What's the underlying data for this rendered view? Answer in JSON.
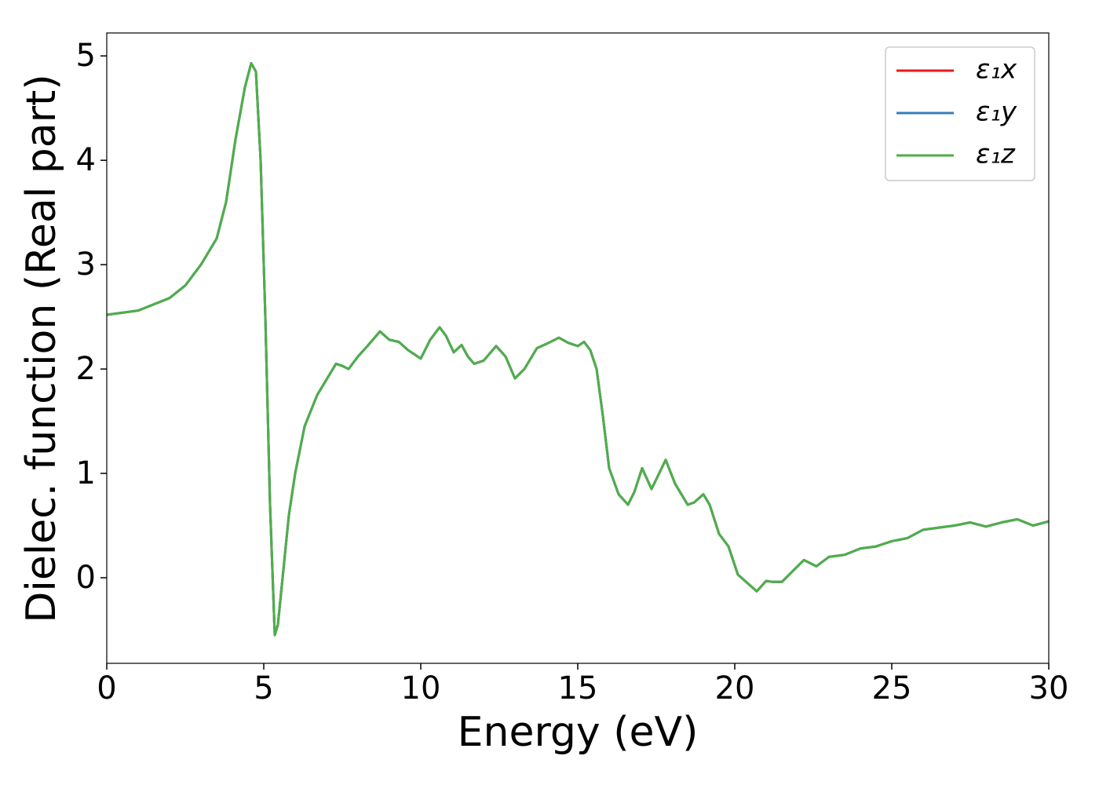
{
  "chart_data": {
    "type": "line",
    "xlabel": "Energy (eV)",
    "ylabel": "Dielec. function (Real part)",
    "x": [
      0,
      1,
      2,
      2.5,
      3,
      3.5,
      3.8,
      4.1,
      4.4,
      4.6,
      4.75,
      4.9,
      5.05,
      5.2,
      5.35,
      5.45,
      5.6,
      5.8,
      6.0,
      6.3,
      6.7,
      7.0,
      7.3,
      7.5,
      7.7,
      8.0,
      8.3,
      8.7,
      9.0,
      9.3,
      9.6,
      10.0,
      10.3,
      10.6,
      10.8,
      11.05,
      11.3,
      11.5,
      11.7,
      12.0,
      12.4,
      12.7,
      13.0,
      13.3,
      13.7,
      14.0,
      14.4,
      14.7,
      15.0,
      15.2,
      15.4,
      15.6,
      15.8,
      16.0,
      16.3,
      16.6,
      16.8,
      17.05,
      17.35,
      17.8,
      18.1,
      18.5,
      18.7,
      19.0,
      19.2,
      19.5,
      19.8,
      20.1,
      20.4,
      20.7,
      21.0,
      21.2,
      21.5,
      21.8,
      22.2,
      22.6,
      23.0,
      23.5,
      24.0,
      24.5,
      25.0,
      25.5,
      26.0,
      26.5,
      27.0,
      27.5,
      28.0,
      28.5,
      29.0,
      29.5,
      30.0
    ],
    "series": [
      {
        "name": "ε₁x",
        "color": "#e41a1c",
        "values": [
          2.52,
          2.56,
          2.68,
          2.8,
          3.0,
          3.25,
          3.6,
          4.2,
          4.7,
          4.93,
          4.85,
          4.0,
          2.5,
          0.7,
          -0.55,
          -0.45,
          0.0,
          0.6,
          1.0,
          1.45,
          1.75,
          1.9,
          2.05,
          2.03,
          2.0,
          2.12,
          2.22,
          2.36,
          2.28,
          2.26,
          2.18,
          2.1,
          2.28,
          2.4,
          2.32,
          2.16,
          2.23,
          2.12,
          2.05,
          2.08,
          2.22,
          2.12,
          1.91,
          2.0,
          2.2,
          2.24,
          2.3,
          2.25,
          2.22,
          2.26,
          2.18,
          2.0,
          1.55,
          1.05,
          0.8,
          0.7,
          0.82,
          1.05,
          0.85,
          1.13,
          0.9,
          0.7,
          0.72,
          0.8,
          0.7,
          0.42,
          0.3,
          0.03,
          -0.05,
          -0.13,
          -0.03,
          -0.04,
          -0.04,
          0.05,
          0.17,
          0.11,
          0.2,
          0.22,
          0.28,
          0.3,
          0.35,
          0.38,
          0.46,
          0.48,
          0.5,
          0.53,
          0.49,
          0.53,
          0.56,
          0.5,
          0.54
        ]
      },
      {
        "name": "ε₁y",
        "color": "#377eb8",
        "values": [
          2.52,
          2.56,
          2.68,
          2.8,
          3.0,
          3.25,
          3.6,
          4.2,
          4.7,
          4.93,
          4.85,
          4.0,
          2.5,
          0.7,
          -0.55,
          -0.45,
          0.0,
          0.6,
          1.0,
          1.45,
          1.75,
          1.9,
          2.05,
          2.03,
          2.0,
          2.12,
          2.22,
          2.36,
          2.28,
          2.26,
          2.18,
          2.1,
          2.28,
          2.4,
          2.32,
          2.16,
          2.23,
          2.12,
          2.05,
          2.08,
          2.22,
          2.12,
          1.91,
          2.0,
          2.2,
          2.24,
          2.3,
          2.25,
          2.22,
          2.26,
          2.18,
          2.0,
          1.55,
          1.05,
          0.8,
          0.7,
          0.82,
          1.05,
          0.85,
          1.13,
          0.9,
          0.7,
          0.72,
          0.8,
          0.7,
          0.42,
          0.3,
          0.03,
          -0.05,
          -0.13,
          -0.03,
          -0.04,
          -0.04,
          0.05,
          0.17,
          0.11,
          0.2,
          0.22,
          0.28,
          0.3,
          0.35,
          0.38,
          0.46,
          0.48,
          0.5,
          0.53,
          0.49,
          0.53,
          0.56,
          0.5,
          0.54
        ]
      },
      {
        "name": "ε₁z",
        "color": "#4daf4a",
        "values": [
          2.52,
          2.56,
          2.68,
          2.8,
          3.0,
          3.25,
          3.6,
          4.2,
          4.7,
          4.93,
          4.85,
          4.0,
          2.5,
          0.7,
          -0.55,
          -0.45,
          0.0,
          0.6,
          1.0,
          1.45,
          1.75,
          1.9,
          2.05,
          2.03,
          2.0,
          2.12,
          2.22,
          2.36,
          2.28,
          2.26,
          2.18,
          2.1,
          2.28,
          2.4,
          2.32,
          2.16,
          2.23,
          2.12,
          2.05,
          2.08,
          2.22,
          2.12,
          1.91,
          2.0,
          2.2,
          2.24,
          2.3,
          2.25,
          2.22,
          2.26,
          2.18,
          2.0,
          1.55,
          1.05,
          0.8,
          0.7,
          0.82,
          1.05,
          0.85,
          1.13,
          0.9,
          0.7,
          0.72,
          0.8,
          0.7,
          0.42,
          0.3,
          0.03,
          -0.05,
          -0.13,
          -0.03,
          -0.04,
          -0.04,
          0.05,
          0.17,
          0.11,
          0.2,
          0.22,
          0.28,
          0.3,
          0.35,
          0.38,
          0.46,
          0.48,
          0.5,
          0.53,
          0.49,
          0.53,
          0.56,
          0.5,
          0.54
        ]
      }
    ],
    "xlim": [
      0,
      30
    ],
    "xticks": [
      0,
      5,
      10,
      15,
      20,
      25,
      30
    ],
    "ylim": [
      -0.82,
      5.22
    ],
    "yticks": [
      0,
      1,
      2,
      3,
      4,
      5
    ],
    "grid": false,
    "legend": "upper right"
  }
}
